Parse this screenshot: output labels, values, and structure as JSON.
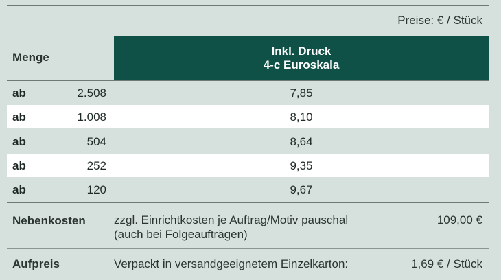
{
  "price_note": "Preise: € / Stück",
  "header": {
    "menge": "Menge",
    "druck_line1": "Inkl. Druck",
    "druck_line2": "4-c Euroskala"
  },
  "rows": [
    {
      "ab": "ab",
      "qty": "2.508",
      "price": "7,85"
    },
    {
      "ab": "ab",
      "qty": "1.008",
      "price": "8,10"
    },
    {
      "ab": "ab",
      "qty": "504",
      "price": "8,64"
    },
    {
      "ab": "ab",
      "qty": "252",
      "price": "9,35"
    },
    {
      "ab": "ab",
      "qty": "120",
      "price": "9,67"
    }
  ],
  "nebenkosten": {
    "label": "Nebenkosten",
    "line1": "zzgl. Einrichtkosten je Auftrag/Motiv pauschal",
    "line2": "(auch bei Folgeaufträgen)",
    "amount": "109,00 €"
  },
  "aufpreis": {
    "label": "Aufpreis",
    "text": "Verpackt in versandgeeignetem Einzelkarton:",
    "amount": "1,69 € / Stück"
  }
}
